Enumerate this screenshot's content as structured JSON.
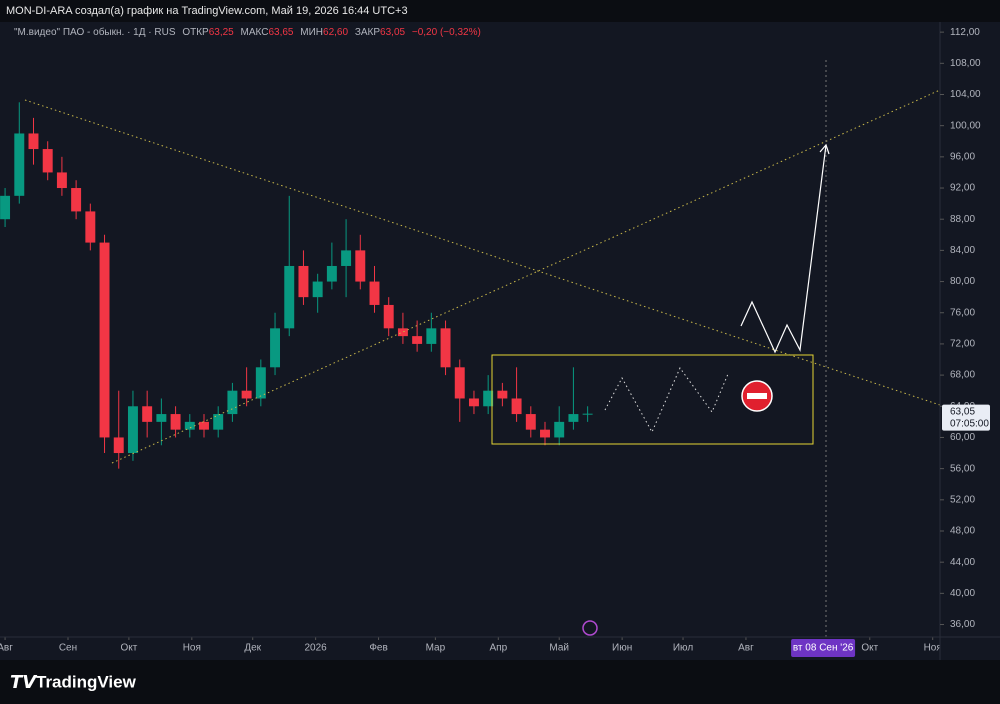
{
  "header": {
    "title": "MON-DI-ARA создал(а) график на TradingView.com, Май 19, 2026 16:44 UTC+3",
    "symbol": "\"М.видео\" ПАО - обыкн. · 1Д · RUS",
    "open_label": "ОТКР",
    "open": "63,25",
    "high_label": "МАКС",
    "high": "63,65",
    "low_label": "МИН",
    "low": "62,60",
    "close_label": "ЗАКР",
    "close": "63,05",
    "change": "−0,20 (−0,32%)"
  },
  "last_price": {
    "value": 63.05,
    "label": "63,05",
    "timer": "07:05:00"
  },
  "footer": {
    "brand": "TradingView"
  },
  "chart_data": {
    "type": "candlestick",
    "x": [
      0,
      7,
      14,
      21,
      28,
      35,
      42,
      49,
      56,
      63,
      70,
      77,
      84,
      91,
      98,
      105,
      112,
      119,
      126,
      133,
      140,
      147,
      154,
      161,
      168,
      175,
      182,
      189,
      196,
      203,
      210,
      217,
      224,
      231,
      238,
      245,
      252,
      259,
      266,
      273,
      280,
      287
    ],
    "open": [
      88,
      91,
      99,
      97,
      94,
      92,
      89,
      85,
      60,
      58,
      64,
      62,
      63,
      61,
      62,
      61,
      63,
      66,
      65,
      69,
      74,
      82,
      78,
      80,
      82,
      84,
      80,
      77,
      74,
      73,
      72,
      74,
      69,
      65,
      64,
      66,
      65,
      63,
      61,
      60,
      62,
      63
    ],
    "high": [
      92,
      103,
      101,
      98,
      96,
      93,
      90,
      86,
      66,
      66,
      66,
      65,
      64,
      63,
      63,
      64,
      67,
      69,
      70,
      76,
      91,
      84,
      81,
      85,
      88,
      86,
      82,
      78,
      76,
      75,
      76,
      75,
      70,
      66,
      68,
      67,
      69,
      64,
      62,
      64,
      69,
      64
    ],
    "low": [
      87,
      90,
      95,
      93,
      91,
      88,
      84,
      58,
      56,
      57,
      60,
      59,
      60,
      60,
      60,
      60,
      62,
      64,
      64,
      68,
      73,
      77,
      76,
      79,
      78,
      79,
      76,
      73,
      72,
      71,
      71,
      68,
      62,
      63,
      63,
      64,
      62,
      60,
      59,
      59,
      61,
      62
    ],
    "close": [
      91,
      99,
      97,
      94,
      92,
      89,
      85,
      60,
      58,
      64,
      62,
      63,
      61,
      62,
      61,
      63,
      66,
      65,
      69,
      74,
      82,
      78,
      80,
      82,
      84,
      80,
      77,
      74,
      73,
      72,
      74,
      69,
      65,
      64,
      66,
      65,
      63,
      61,
      60,
      62,
      63,
      63.05
    ],
    "up_color": "#089981",
    "down_color": "#f23645",
    "xlim": [
      -2.5,
      460.6
    ],
    "xticks": [
      {
        "value": 0,
        "label": "Авг"
      },
      {
        "value": 31,
        "label": "Сен"
      },
      {
        "value": 61,
        "label": "Окт"
      },
      {
        "value": 92,
        "label": "Ноя"
      },
      {
        "value": 122,
        "label": "Дек"
      },
      {
        "value": 153,
        "label": "2026"
      },
      {
        "value": 184,
        "label": "Фев"
      },
      {
        "value": 212,
        "label": "Мар"
      },
      {
        "value": 243,
        "label": "Апр"
      },
      {
        "value": 273,
        "label": "Май"
      },
      {
        "value": 304,
        "label": "Июн"
      },
      {
        "value": 334,
        "label": "Июл"
      },
      {
        "value": 365,
        "label": "Авг"
      },
      {
        "value": 426,
        "label": "Окт"
      },
      {
        "value": 457,
        "label": "Ноя"
      }
    ],
    "crosshair_x": {
      "value": 403,
      "label": "вт 08 Сен '26"
    },
    "ylim": [
      34.4,
      113.3
    ],
    "yticks": [
      {
        "value": 36,
        "label": "36,00"
      },
      {
        "value": 40,
        "label": "40,00"
      },
      {
        "value": 44,
        "label": "44,00"
      },
      {
        "value": 48,
        "label": "48,00"
      },
      {
        "value": 52,
        "label": "52,00"
      },
      {
        "value": 56,
        "label": "56,00"
      },
      {
        "value": 60,
        "label": "60,00"
      },
      {
        "value": 64,
        "label": "64,00"
      },
      {
        "value": 68,
        "label": "68,00"
      },
      {
        "value": 72,
        "label": "72,00"
      },
      {
        "value": 76,
        "label": "76,00"
      },
      {
        "value": 80,
        "label": "80,00"
      },
      {
        "value": 84,
        "label": "84,00"
      },
      {
        "value": 88,
        "label": "88,00"
      },
      {
        "value": 92,
        "label": "92,00"
      },
      {
        "value": 96,
        "label": "96,00"
      },
      {
        "value": 100,
        "label": "100,00"
      },
      {
        "value": 104,
        "label": "104,00"
      },
      {
        "value": 108,
        "label": "108,00"
      },
      {
        "value": 112,
        "label": "112,00"
      }
    ],
    "grid": false
  }
}
